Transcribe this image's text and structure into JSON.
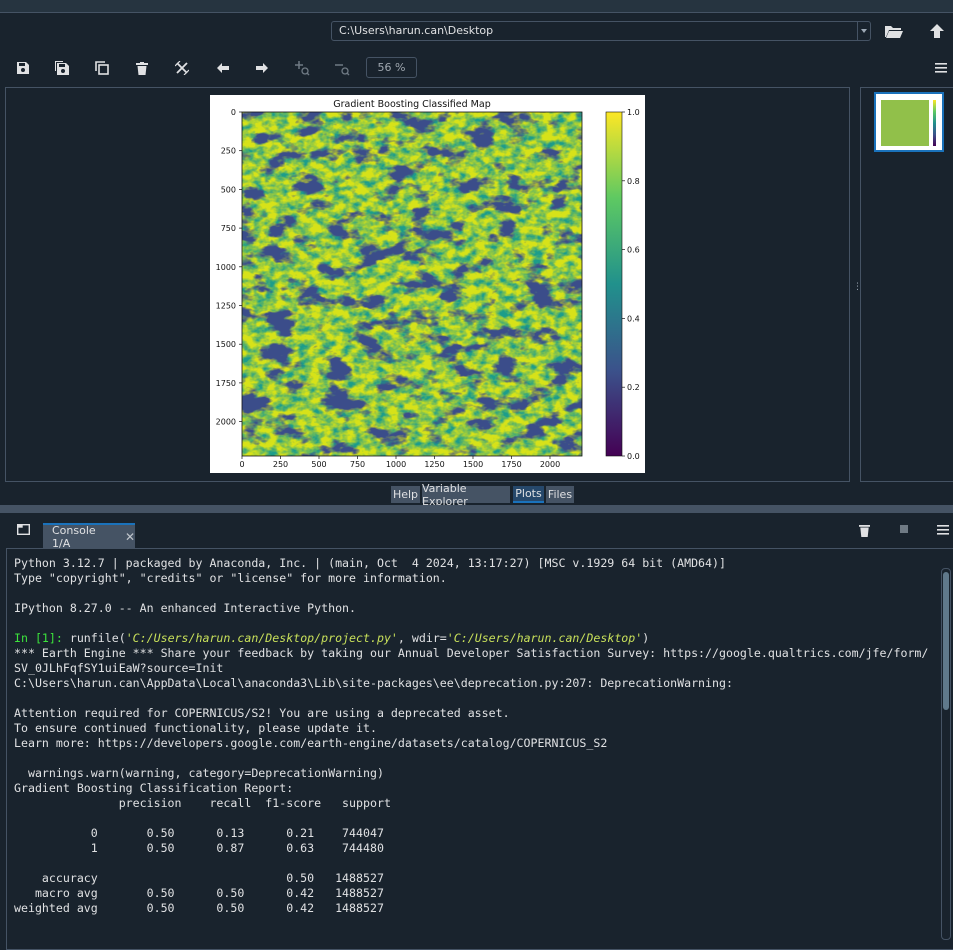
{
  "path_bar": {
    "path": "C:\\Users\\harun.can\\Desktop"
  },
  "plots_toolbar": {
    "zoom": "56 %"
  },
  "figure": {
    "chart_data": {
      "type": "heatmap",
      "title": "Gradient Boosting Classified Map",
      "x_ticks": [
        "0",
        "250",
        "500",
        "750",
        "1000",
        "1250",
        "1500",
        "1750",
        "2000"
      ],
      "y_ticks": [
        "0",
        "250",
        "500",
        "750",
        "1000",
        "1250",
        "1500",
        "1750",
        "2000"
      ],
      "colorbar_ticks": [
        "1.0",
        "0.8",
        "0.6",
        "0.4",
        "0.2",
        "0.0"
      ],
      "colorbar_range": [
        0.0,
        1.0
      ],
      "colormap": [
        "#440154",
        "#3b528b",
        "#21918c",
        "#5ec962",
        "#fde725"
      ]
    }
  },
  "pane_tabs": [
    "Help",
    "Variable Explorer",
    "Plots",
    "Files"
  ],
  "console_tab": {
    "label": "Console 1/A"
  },
  "console": {
    "lines": [
      "Python 3.12.7 | packaged by Anaconda, Inc. | (main, Oct  4 2024, 13:17:27) [MSC v.1929 64 bit (AMD64)]",
      "Type \"copyright\", \"credits\" or \"license\" for more information.",
      "",
      "IPython 8.27.0 -- An enhanced Interactive Python.",
      "",
      "",
      "*** Earth Engine *** Share your feedback by taking our Annual Developer Satisfaction Survey: https://google.qualtrics.com/jfe/form/",
      "SV_0JLhFqfSY1uiEaW?source=Init",
      "C:\\Users\\harun.can\\AppData\\Local\\anaconda3\\Lib\\site-packages\\ee\\deprecation.py:207: DeprecationWarning:",
      "",
      "Attention required for COPERNICUS/S2! You are using a deprecated asset.",
      "To ensure continued functionality, please update it.",
      "Learn more: https://developers.google.com/earth-engine/datasets/catalog/COPERNICUS_S2",
      "",
      "  warnings.warn(warning, category=DeprecationWarning)",
      "Gradient Boosting Classification Report:",
      "               precision    recall  f1-score   support",
      "",
      "           0       0.50      0.13      0.21    744047",
      "           1       0.50      0.87      0.63    744480",
      "",
      "    accuracy                           0.50   1488527",
      "   macro avg       0.50      0.50      0.42   1488527",
      "weighted avg       0.50      0.50      0.42   1488527"
    ],
    "prompt_line": {
      "prompt": "In [1]: ",
      "func": "runfile(",
      "arg1": "'C:/Users/harun.can/Desktop/project.py'",
      "mid": ", wdir=",
      "arg2": "'C:/Users/harun.can/Desktop'",
      "end": ")"
    }
  }
}
